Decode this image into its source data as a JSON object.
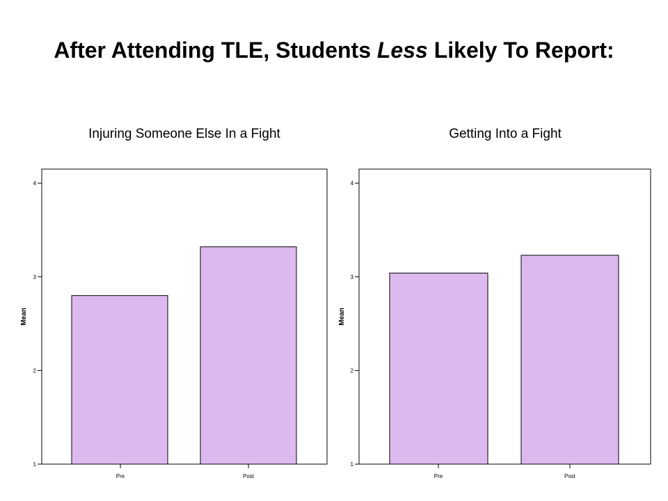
{
  "page": {
    "title_part1": "After Attending TLE, Students ",
    "title_emph": "Less",
    "title_part2": " Likely To Report:"
  },
  "colors": {
    "bar_fill": "#dcbaf0",
    "bar_stroke": "#000000"
  },
  "chart_data": [
    {
      "type": "bar",
      "title": "Injuring Someone Else In a Fight",
      "categories": [
        "Pre",
        "Post"
      ],
      "values": [
        2.8,
        3.32
      ],
      "ylabel": "Mean",
      "xlabel": "",
      "ylim": [
        1,
        4.15
      ],
      "yticks": [
        1,
        2,
        3,
        4
      ],
      "grid": false
    },
    {
      "type": "bar",
      "title": "Getting Into a Fight",
      "categories": [
        "Pre",
        "Post"
      ],
      "values": [
        3.04,
        3.23
      ],
      "ylabel": "Mean",
      "xlabel": "",
      "ylim": [
        1,
        4.15
      ],
      "yticks": [
        1,
        2,
        3,
        4
      ],
      "grid": false
    }
  ]
}
